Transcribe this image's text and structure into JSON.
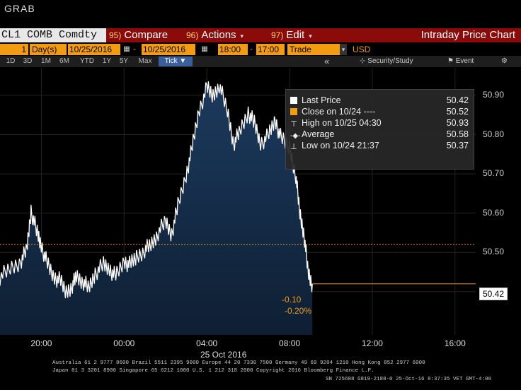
{
  "window": {
    "title": "GRAB"
  },
  "header": {
    "ticker": "CL1 COMB Comdty",
    "compare": {
      "num": "95)",
      "label": "Compare"
    },
    "actions": {
      "num": "96)",
      "label": "Actions"
    },
    "edit": {
      "num": "97)",
      "label": "Edit"
    },
    "title": "Intraday Price Chart"
  },
  "controls": {
    "period_count": "1",
    "period_unit": "Day(s)",
    "start_date": "10/25/2016",
    "end_date": "10/25/2016",
    "start_time": "18:00",
    "end_time": "17:00",
    "field": "Trade",
    "currency": "USD"
  },
  "ranges": [
    "1D",
    "3D",
    "1M",
    "6M",
    "YTD",
    "1Y",
    "5Y",
    "Max"
  ],
  "tick_button": "Tick",
  "toolbar": {
    "collapse_glyph": "«",
    "security_study": "Security/Study",
    "event": "Event",
    "settings_glyph": "⚙"
  },
  "legend": {
    "last_price": {
      "label": "Last Price",
      "value": "50.42"
    },
    "close": {
      "label": "Close on 10/24 ----",
      "value": "50.52"
    },
    "high": {
      "label": "High on 10/25 04:30",
      "value": "50.93"
    },
    "average": {
      "label": "Average",
      "value": "50.58"
    },
    "low": {
      "label": "Low on 10/24 21:37",
      "value": "50.37"
    }
  },
  "annotations": {
    "change": "-0.10",
    "change_pct": "-0.20%",
    "last_tag": "50.42"
  },
  "date_label": "25 Oct 2016",
  "footer": {
    "line1": "Australia 61 2 9777 8600 Brazil 5511 2395 9000 Europe 44 20 7330 7500 Germany 49 69 9204 1210 Hong Kong 852 2977 6000",
    "line2": "Japan 81 3 3201 8900          Singapore 65 6212 1000          U.S. 1 212 318 2000          Copyright 2016 Bloomberg Finance L.P.",
    "line3": "SN 725688 G819-2188-0 25-Oct-16  8:37:35 VET  GMT-4:00"
  },
  "colors": {
    "accent": "#f39c12",
    "header": "#8b0a0a",
    "area_top": "#1c3a5e",
    "area_bottom": "#0e1f33",
    "line": "#ffffff"
  },
  "chart_data": {
    "type": "area",
    "xlabel": "",
    "ylabel": "",
    "x_ticks": [
      "20:00",
      "00:00",
      "04:00",
      "08:00",
      "12:00",
      "16:00"
    ],
    "y_ticks": [
      50.4,
      50.5,
      50.6,
      50.7,
      50.8,
      50.9
    ],
    "ylim": [
      50.29,
      50.97
    ],
    "x_range_hours": [
      18,
      41
    ],
    "close_reference": 50.52,
    "last_value": 50.42,
    "series": [
      {
        "x": [
          18.0,
          18.5,
          19.0,
          19.3,
          19.5,
          19.8,
          20.0,
          20.3,
          20.6,
          20.9,
          21.2,
          21.5,
          21.7,
          22.0,
          22.3,
          22.6,
          23.0,
          23.3,
          23.6,
          24.0,
          24.3,
          24.6,
          25.0,
          25.3,
          25.6,
          26.0,
          26.3,
          26.6,
          27.0,
          27.3,
          27.6,
          28.0,
          28.3,
          28.6,
          29.0,
          29.3,
          29.6,
          30.0,
          30.3,
          30.6,
          31.0,
          31.3,
          31.6,
          32.0,
          32.3,
          32.5,
          32.7,
          32.9,
          33.1
        ],
        "y": [
          50.44,
          50.46,
          50.48,
          50.51,
          50.61,
          50.55,
          50.52,
          50.47,
          50.44,
          50.43,
          50.4,
          50.42,
          50.44,
          50.43,
          50.41,
          50.45,
          50.47,
          50.46,
          50.44,
          50.48,
          50.47,
          50.49,
          50.51,
          50.52,
          50.55,
          50.58,
          50.55,
          50.62,
          50.7,
          50.77,
          50.86,
          50.92,
          50.9,
          50.93,
          50.86,
          50.78,
          50.81,
          50.86,
          50.83,
          50.78,
          50.8,
          50.84,
          50.79,
          50.77,
          50.7,
          50.6,
          50.55,
          50.45,
          50.42
        ]
      }
    ]
  }
}
